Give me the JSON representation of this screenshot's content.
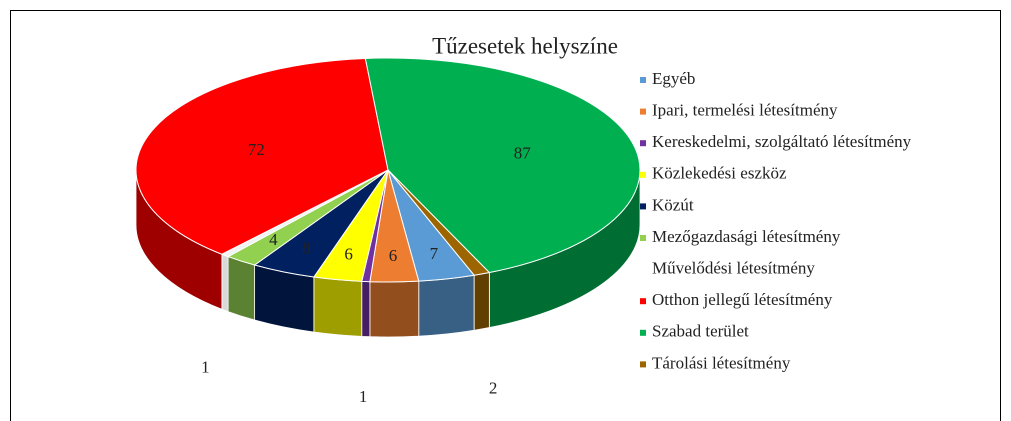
{
  "chart_data": {
    "type": "pie",
    "title": "Tűzesetek helyszíne",
    "categories": [
      "Egyéb",
      "Ipari, termelési létesítmény",
      "Kereskedelmi, szolgáltató létesítmény",
      "Közlekedési eszköz",
      "Közút",
      "Mezőgazdasági létesítmény",
      "Művelődési létesítmény",
      "Otthon jellegű létesítmény",
      "Szabad terület",
      "Tárolási létesítmény"
    ],
    "values": [
      7,
      6,
      1,
      6,
      8,
      4,
      1,
      72,
      87,
      2
    ],
    "colors": [
      "#5b9bd5",
      "#ed7d31",
      "#7030a0",
      "#ffff00",
      "#002060",
      "#92d050",
      "#ffffff",
      "#ff0000",
      "#00b050",
      "#9c6500"
    ],
    "legend": "right"
  }
}
